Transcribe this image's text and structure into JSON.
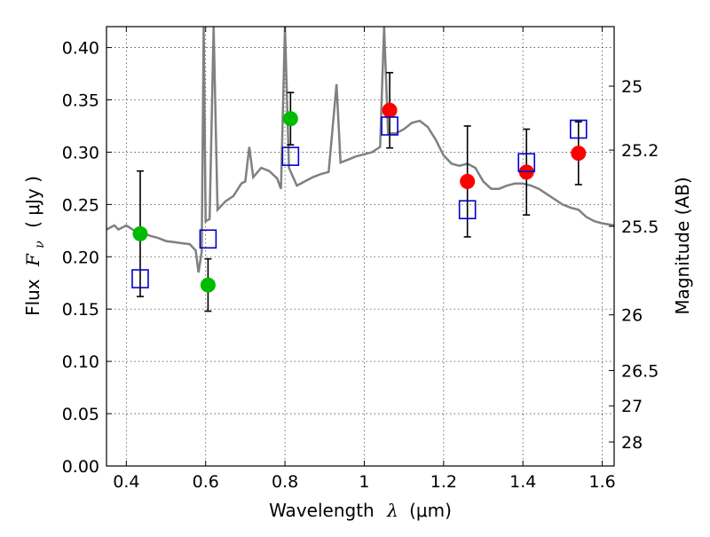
{
  "chart_data": {
    "type": "scatter",
    "title": "",
    "xlabel": "Wavelength",
    "xlabel_symbol": "λ",
    "xlabel_unit": "(μm)",
    "ylabel": "Flux",
    "ylabel_symbol": "F",
    "ylabel_symbol_sub": "ν",
    "ylabel_unit": "( μJy )",
    "y2label": "Magnitude (AB)",
    "xlim": [
      0.35,
      1.63
    ],
    "ylim": [
      0.0,
      0.42
    ],
    "grid": true,
    "x_ticks": [
      0.4,
      0.6,
      0.8,
      1.0,
      1.2,
      1.4,
      1.6
    ],
    "x_tick_labels": [
      "0.4",
      "0.6",
      "0.8",
      "1",
      "1.2",
      "1.4",
      "1.6"
    ],
    "y_ticks": [
      0.0,
      0.05,
      0.1,
      0.15,
      0.2,
      0.25,
      0.3,
      0.35,
      0.4
    ],
    "y_tick_labels": [
      "0.00",
      "0.05",
      "0.10",
      "0.15",
      "0.20",
      "0.25",
      "0.30",
      "0.35",
      "0.40"
    ],
    "y2_ticks": [
      {
        "label": "25",
        "flux": 0.3631
      },
      {
        "label": "25.2",
        "flux": 0.302
      },
      {
        "label": "25.5",
        "flux": 0.2291
      },
      {
        "label": "26",
        "flux": 0.1445
      },
      {
        "label": "26.5",
        "flux": 0.0912
      },
      {
        "label": "27",
        "flux": 0.0575
      },
      {
        "label": "28",
        "flux": 0.0229
      }
    ],
    "series": [
      {
        "marker": "circle",
        "color": "#00bb00",
        "points": [
          {
            "x": 0.435,
            "y": 0.222,
            "err": 0.06
          },
          {
            "x": 0.606,
            "y": 0.173,
            "err": 0.025
          },
          {
            "x": 0.814,
            "y": 0.332,
            "err": 0.025
          }
        ]
      },
      {
        "marker": "circle",
        "color": "#ff0000",
        "points": [
          {
            "x": 1.064,
            "y": 0.34,
            "err": 0.036
          },
          {
            "x": 1.26,
            "y": 0.272,
            "err": 0.053
          },
          {
            "x": 1.409,
            "y": 0.281,
            "err": 0.041
          },
          {
            "x": 1.54,
            "y": 0.299,
            "err": 0.03
          }
        ]
      },
      {
        "marker": "open-square",
        "color": "#0000cc",
        "points": [
          {
            "x": 0.435,
            "y": 0.179
          },
          {
            "x": 0.606,
            "y": 0.217
          },
          {
            "x": 0.814,
            "y": 0.296
          },
          {
            "x": 1.064,
            "y": 0.325
          },
          {
            "x": 1.26,
            "y": 0.245
          },
          {
            "x": 1.409,
            "y": 0.29
          },
          {
            "x": 1.54,
            "y": 0.322
          }
        ]
      }
    ],
    "spectrum": {
      "color": "#808080",
      "points": [
        [
          0.35,
          0.226
        ],
        [
          0.37,
          0.23
        ],
        [
          0.38,
          0.226
        ],
        [
          0.39,
          0.228
        ],
        [
          0.4,
          0.23
        ],
        [
          0.42,
          0.225
        ],
        [
          0.44,
          0.223
        ],
        [
          0.46,
          0.22
        ],
        [
          0.48,
          0.218
        ],
        [
          0.5,
          0.215
        ],
        [
          0.52,
          0.214
        ],
        [
          0.54,
          0.213
        ],
        [
          0.56,
          0.212
        ],
        [
          0.575,
          0.206
        ],
        [
          0.582,
          0.185
        ],
        [
          0.59,
          0.205
        ],
        [
          0.595,
          0.42
        ],
        [
          0.6,
          0.234
        ],
        [
          0.61,
          0.236
        ],
        [
          0.62,
          0.42
        ],
        [
          0.63,
          0.245
        ],
        [
          0.65,
          0.253
        ],
        [
          0.67,
          0.258
        ],
        [
          0.69,
          0.27
        ],
        [
          0.7,
          0.272
        ],
        [
          0.71,
          0.305
        ],
        [
          0.72,
          0.276
        ],
        [
          0.74,
          0.285
        ],
        [
          0.76,
          0.282
        ],
        [
          0.78,
          0.275
        ],
        [
          0.79,
          0.265
        ],
        [
          0.8,
          0.42
        ],
        [
          0.81,
          0.285
        ],
        [
          0.83,
          0.268
        ],
        [
          0.85,
          0.272
        ],
        [
          0.87,
          0.276
        ],
        [
          0.89,
          0.279
        ],
        [
          0.91,
          0.281
        ],
        [
          0.93,
          0.365
        ],
        [
          0.94,
          0.29
        ],
        [
          0.96,
          0.293
        ],
        [
          0.98,
          0.296
        ],
        [
          1.0,
          0.298
        ],
        [
          1.02,
          0.3
        ],
        [
          1.04,
          0.305
        ],
        [
          1.05,
          0.42
        ],
        [
          1.06,
          0.318
        ],
        [
          1.08,
          0.318
        ],
        [
          1.1,
          0.322
        ],
        [
          1.12,
          0.328
        ],
        [
          1.14,
          0.33
        ],
        [
          1.16,
          0.324
        ],
        [
          1.18,
          0.312
        ],
        [
          1.2,
          0.297
        ],
        [
          1.22,
          0.289
        ],
        [
          1.24,
          0.287
        ],
        [
          1.26,
          0.289
        ],
        [
          1.28,
          0.285
        ],
        [
          1.3,
          0.272
        ],
        [
          1.32,
          0.265
        ],
        [
          1.34,
          0.265
        ],
        [
          1.36,
          0.268
        ],
        [
          1.38,
          0.27
        ],
        [
          1.4,
          0.27
        ],
        [
          1.42,
          0.268
        ],
        [
          1.44,
          0.265
        ],
        [
          1.46,
          0.26
        ],
        [
          1.48,
          0.255
        ],
        [
          1.5,
          0.25
        ],
        [
          1.52,
          0.247
        ],
        [
          1.54,
          0.245
        ],
        [
          1.56,
          0.238
        ],
        [
          1.58,
          0.234
        ],
        [
          1.6,
          0.232
        ],
        [
          1.63,
          0.23
        ]
      ]
    }
  }
}
